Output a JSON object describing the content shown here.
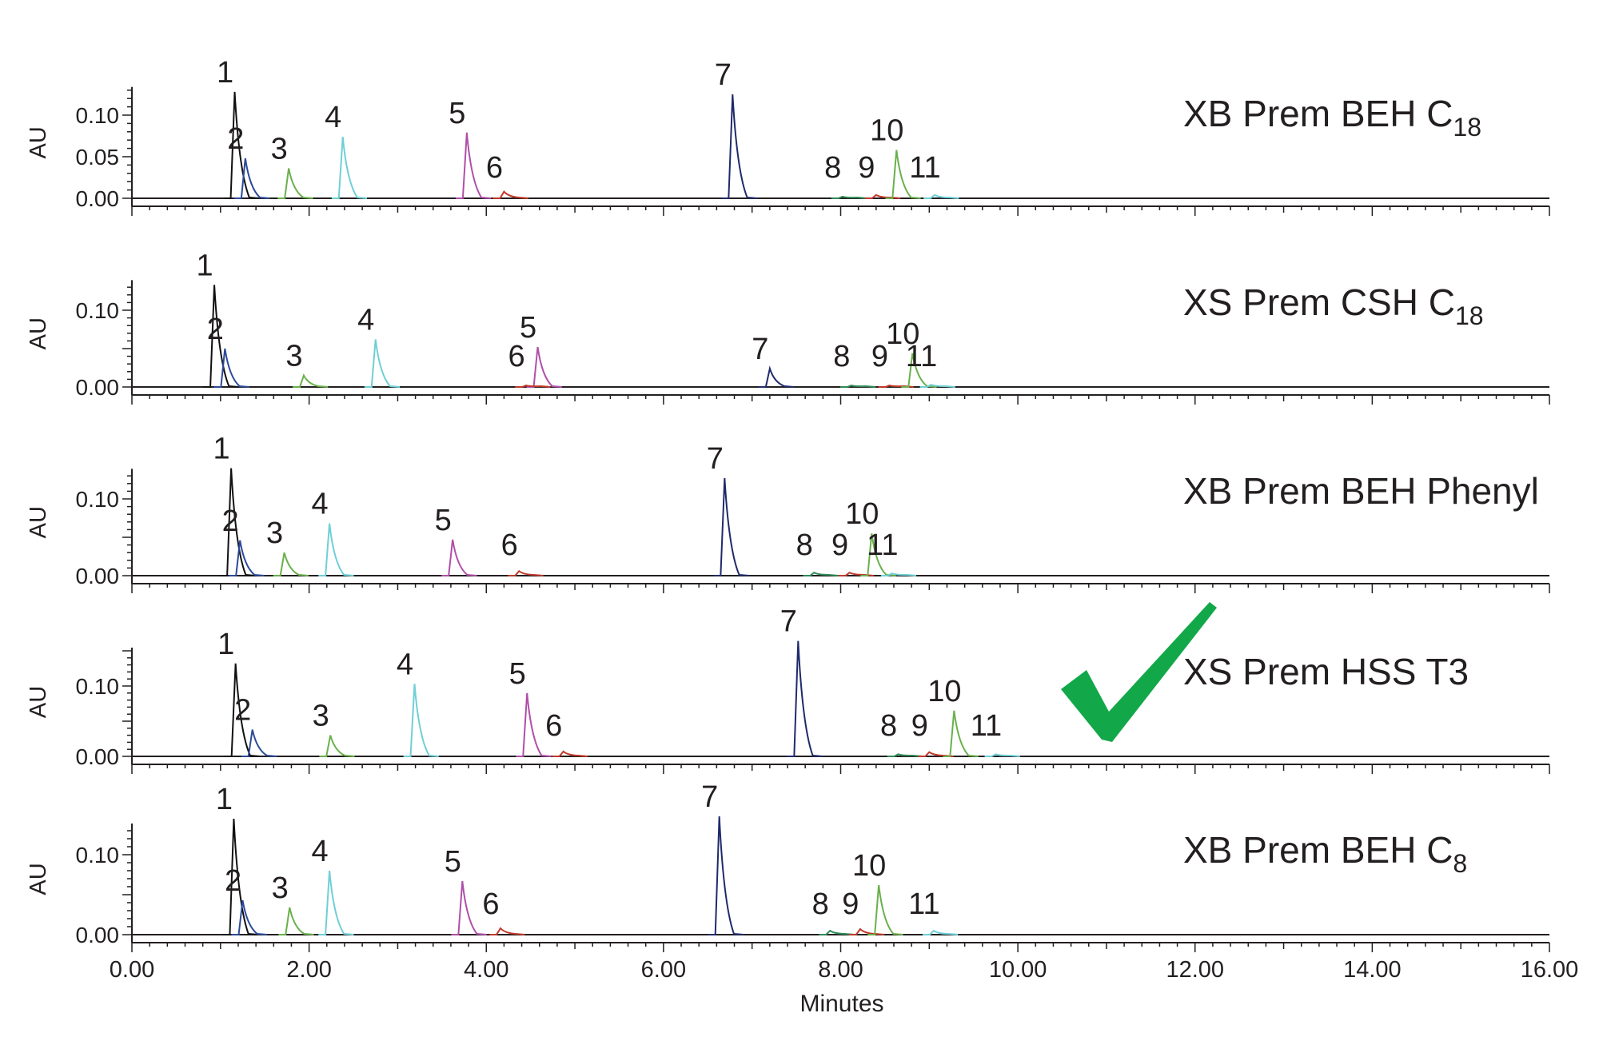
{
  "chart_data": {
    "type": "line",
    "xlabel": "Minutes",
    "ylabel": "AU",
    "xlim": [
      0,
      16
    ],
    "x_ticks": [
      "0.00",
      "2.00",
      "4.00",
      "6.00",
      "8.00",
      "10.00",
      "12.00",
      "14.00",
      "16.00"
    ],
    "grid": false,
    "peak_colors": [
      "#111111",
      "#2b4a9a",
      "#6ab04c",
      "#6fcfd6",
      "#b04fa8",
      "#c0392b",
      "#1f2a6b",
      "#2e8b57",
      "#c0392b",
      "#6ab04c",
      "#6fcfd6"
    ],
    "check_mark": {
      "icon": "check-mark-icon",
      "color": "#12a84a",
      "panel": 3
    },
    "panels": [
      {
        "label_main": "XB Prem BEH C",
        "label_sub": "18",
        "ylim": [
          0,
          0.13
        ],
        "y_ticks": [
          {
            "v": 0.0,
            "t": "0.00"
          },
          {
            "v": 0.05,
            "t": "0.05"
          },
          {
            "v": 0.1,
            "t": "0.10"
          }
        ],
        "peaks": [
          {
            "label": "1",
            "x": 1.16,
            "y": 0.128
          },
          {
            "label": "2",
            "x": 1.28,
            "y": 0.048
          },
          {
            "label": "3",
            "x": 1.77,
            "y": 0.036
          },
          {
            "label": "4",
            "x": 2.38,
            "y": 0.074
          },
          {
            "label": "5",
            "x": 3.78,
            "y": 0.079
          },
          {
            "label": "6",
            "x": 4.2,
            "y": 0.008
          },
          {
            "label": "7",
            "x": 6.78,
            "y": 0.125
          },
          {
            "label": "8",
            "x": 8.02,
            "y": 0.002
          },
          {
            "label": "9",
            "x": 8.4,
            "y": 0.004
          },
          {
            "label": "10",
            "x": 8.63,
            "y": 0.058
          },
          {
            "label": "11",
            "x": 9.06,
            "y": 0.004
          }
        ]
      },
      {
        "label_main": "XS Prem CSH C",
        "label_sub": "18",
        "ylim": [
          0,
          0.135
        ],
        "y_ticks": [
          {
            "v": 0.0,
            "t": "0.00"
          },
          {
            "v": 0.1,
            "t": "0.10"
          }
        ],
        "peaks": [
          {
            "label": "1",
            "x": 0.93,
            "y": 0.133
          },
          {
            "label": "2",
            "x": 1.05,
            "y": 0.05
          },
          {
            "label": "3",
            "x": 1.94,
            "y": 0.015
          },
          {
            "label": "4",
            "x": 2.75,
            "y": 0.062
          },
          {
            "label": "5",
            "x": 4.58,
            "y": 0.052
          },
          {
            "label": "6",
            "x": 4.45,
            "y": 0.002
          },
          {
            "label": "7",
            "x": 7.2,
            "y": 0.024
          },
          {
            "label": "8",
            "x": 8.12,
            "y": 0.002
          },
          {
            "label": "9",
            "x": 8.55,
            "y": 0.002
          },
          {
            "label": "10",
            "x": 8.81,
            "y": 0.044
          },
          {
            "label": "11",
            "x": 9.02,
            "y": 0.003
          }
        ]
      },
      {
        "label_main": "XB Prem BEH Phenyl",
        "label_sub": "",
        "ylim": [
          0,
          0.135
        ],
        "y_ticks": [
          {
            "v": 0.0,
            "t": "0.00"
          },
          {
            "v": 0.1,
            "t": "0.10"
          }
        ],
        "peaks": [
          {
            "label": "1",
            "x": 1.12,
            "y": 0.14
          },
          {
            "label": "2",
            "x": 1.22,
            "y": 0.046
          },
          {
            "label": "3",
            "x": 1.72,
            "y": 0.03
          },
          {
            "label": "4",
            "x": 2.23,
            "y": 0.068
          },
          {
            "label": "5",
            "x": 3.62,
            "y": 0.047
          },
          {
            "label": "6",
            "x": 4.37,
            "y": 0.006
          },
          {
            "label": "7",
            "x": 6.69,
            "y": 0.127
          },
          {
            "label": "8",
            "x": 7.7,
            "y": 0.004
          },
          {
            "label": "9",
            "x": 8.1,
            "y": 0.004
          },
          {
            "label": "10",
            "x": 8.35,
            "y": 0.055
          },
          {
            "label": "11",
            "x": 8.58,
            "y": 0.003
          }
        ]
      },
      {
        "label_main": "XS Prem HSS T3",
        "label_sub": "",
        "ylim": [
          0,
          0.15
        ],
        "y_ticks": [
          {
            "v": 0.0,
            "t": "0.00"
          },
          {
            "v": 0.1,
            "t": "0.10"
          }
        ],
        "peaks": [
          {
            "label": "1",
            "x": 1.17,
            "y": 0.132
          },
          {
            "label": "2",
            "x": 1.36,
            "y": 0.038
          },
          {
            "label": "3",
            "x": 2.24,
            "y": 0.03
          },
          {
            "label": "4",
            "x": 3.19,
            "y": 0.103
          },
          {
            "label": "5",
            "x": 4.46,
            "y": 0.09
          },
          {
            "label": "6",
            "x": 4.87,
            "y": 0.007
          },
          {
            "label": "7",
            "x": 7.52,
            "y": 0.164
          },
          {
            "label": "8",
            "x": 8.65,
            "y": 0.003
          },
          {
            "label": "9",
            "x": 9.0,
            "y": 0.006
          },
          {
            "label": "10",
            "x": 9.28,
            "y": 0.065
          },
          {
            "label": "11",
            "x": 9.75,
            "y": 0.003
          }
        ]
      },
      {
        "label_main": "XB Prem BEH C",
        "label_sub": "8",
        "ylim": [
          0,
          0.135
        ],
        "y_ticks": [
          {
            "v": 0.0,
            "t": "0.00"
          },
          {
            "v": 0.1,
            "t": "0.10"
          }
        ],
        "peaks": [
          {
            "label": "1",
            "x": 1.15,
            "y": 0.145
          },
          {
            "label": "2",
            "x": 1.25,
            "y": 0.043
          },
          {
            "label": "3",
            "x": 1.78,
            "y": 0.034
          },
          {
            "label": "4",
            "x": 2.23,
            "y": 0.08
          },
          {
            "label": "5",
            "x": 3.73,
            "y": 0.067
          },
          {
            "label": "6",
            "x": 4.16,
            "y": 0.008
          },
          {
            "label": "7",
            "x": 6.63,
            "y": 0.148
          },
          {
            "label": "8",
            "x": 7.88,
            "y": 0.005
          },
          {
            "label": "9",
            "x": 8.22,
            "y": 0.007
          },
          {
            "label": "10",
            "x": 8.43,
            "y": 0.062
          },
          {
            "label": "11",
            "x": 9.05,
            "y": 0.005
          }
        ]
      }
    ]
  }
}
